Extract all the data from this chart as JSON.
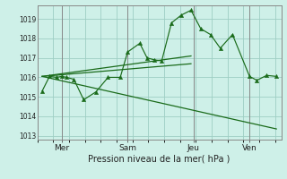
{
  "bg_color": "#cef0e8",
  "line_color": "#1a6b1a",
  "grid_color": "#9ecec4",
  "ylim": [
    1012.8,
    1019.7
  ],
  "yticks": [
    1013,
    1014,
    1015,
    1016,
    1017,
    1018,
    1019
  ],
  "xlim": [
    0,
    100
  ],
  "xlabel": "Pression niveau de la mer( hPa )",
  "day_ticks": [
    10,
    37,
    64,
    87
  ],
  "day_labels": [
    "Mer",
    "Sam",
    "Jeu",
    "Ven"
  ],
  "series_x": [
    2,
    5,
    8,
    10,
    12,
    15,
    19,
    24,
    29,
    34,
    37,
    42,
    45,
    48,
    51,
    55,
    59,
    63,
    67,
    71,
    75,
    80,
    87,
    90,
    94,
    98
  ],
  "series_y": [
    1015.3,
    1016.05,
    1016.0,
    1016.05,
    1016.0,
    1015.9,
    1014.85,
    1015.25,
    1016.0,
    1016.0,
    1017.3,
    1017.75,
    1017.0,
    1016.9,
    1016.85,
    1018.8,
    1019.2,
    1019.45,
    1018.5,
    1018.2,
    1017.5,
    1018.2,
    1016.05,
    1015.85,
    1016.1,
    1016.05
  ],
  "trend1_x": [
    2,
    63
  ],
  "trend1_y": [
    1016.05,
    1017.1
  ],
  "trend2_x": [
    2,
    63
  ],
  "trend2_y": [
    1016.05,
    1016.7
  ],
  "trend3_x": [
    2,
    98
  ],
  "trend3_y": [
    1016.05,
    1013.35
  ]
}
